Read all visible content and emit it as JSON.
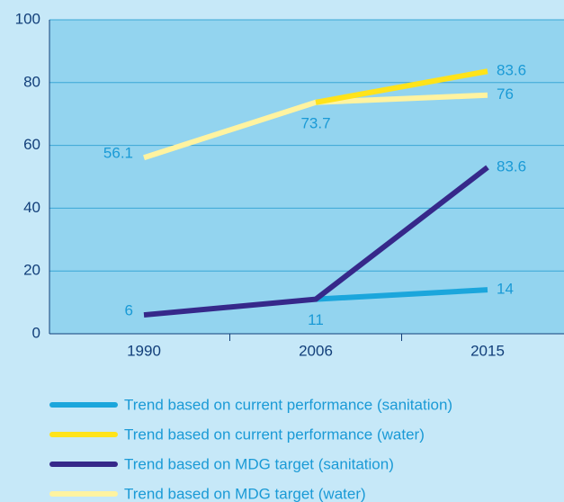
{
  "chart_data": {
    "type": "line",
    "categories": [
      "1990",
      "2006",
      "2015"
    ],
    "series": [
      {
        "name": "Trend based on current performance (sanitation)",
        "color": "#1ba6dc",
        "values": [
          null,
          11,
          14
        ],
        "value_labels": [
          null,
          null,
          "14"
        ]
      },
      {
        "name": "Trend based on current performance (water)",
        "color": "#ffe31a",
        "values": [
          null,
          73.7,
          83.6
        ],
        "value_labels": [
          null,
          null,
          "83.6"
        ]
      },
      {
        "name": "Trend based on MDG target (sanitation)",
        "color": "#36288a",
        "values": [
          6,
          11,
          53
        ],
        "value_labels": [
          "6",
          "11",
          null
        ]
      },
      {
        "name": "Trend based on MDG target (water)",
        "color": "#fff3a0",
        "values": [
          56.1,
          73.7,
          76
        ],
        "value_labels": [
          "56.1",
          "73.7",
          "76"
        ]
      }
    ],
    "annotations": [
      "83.6"
    ],
    "ylim": [
      0,
      100
    ],
    "yticks": [
      0,
      20,
      40,
      60,
      80,
      100
    ],
    "grid": true
  }
}
